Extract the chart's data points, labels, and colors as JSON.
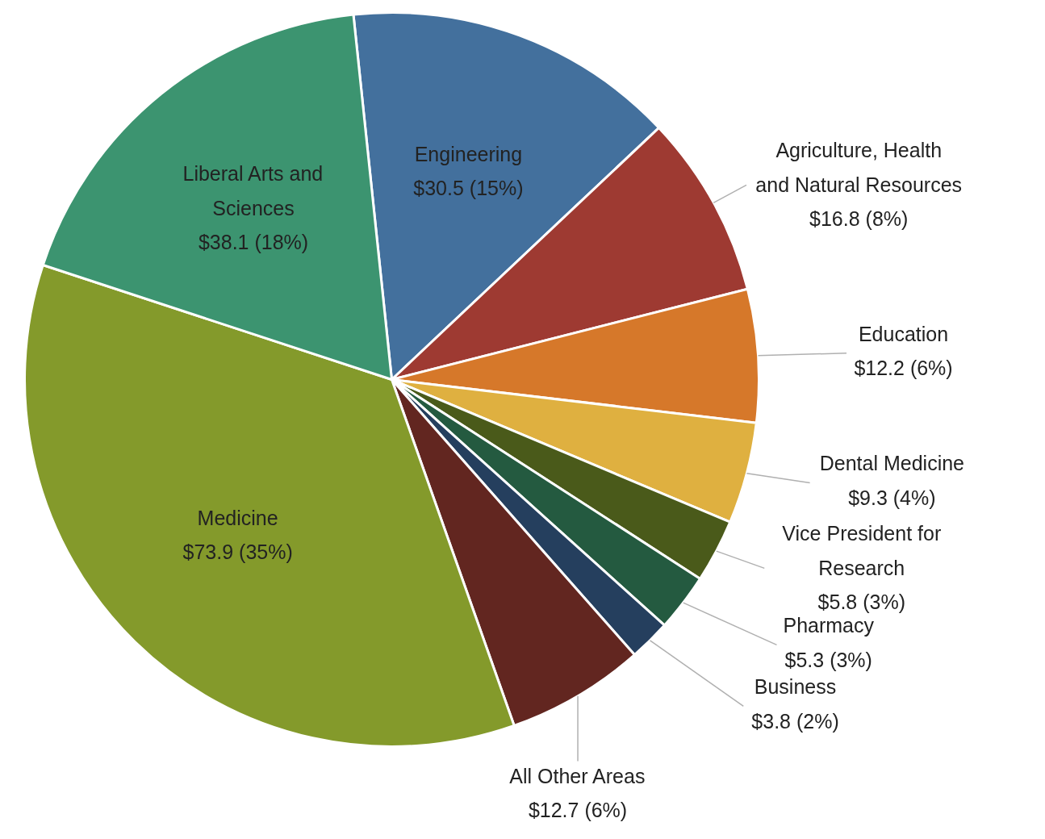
{
  "chart_data": {
    "type": "pie",
    "categories": [
      "Engineering",
      "Agriculture, Health and Natural Resources",
      "Education",
      "Dental Medicine",
      "Vice President for Research",
      "Pharmacy",
      "Business",
      "All Other Areas",
      "Medicine",
      "Liberal Arts and Sciences"
    ],
    "values": [
      30.5,
      16.8,
      12.2,
      9.3,
      5.8,
      5.3,
      3.8,
      12.7,
      73.9,
      38.1
    ],
    "value_labels": [
      "$30.5 (15%)",
      "$16.8 (8%)",
      "$12.2 (6%)",
      "$9.3 (4%)",
      "$5.8 (3%)",
      "$5.3 (3%)",
      "$3.8 (2%)",
      "$12.7 (6%)",
      "$73.9 (35%)",
      "$38.1 (18%)"
    ],
    "colors": [
      "#43709d",
      "#9e3a32",
      "#d6782a",
      "#dfb040",
      "#4a5a1a",
      "#245a40",
      "#253f5e",
      "#622620",
      "#849a2b",
      "#3c9470"
    ]
  }
}
